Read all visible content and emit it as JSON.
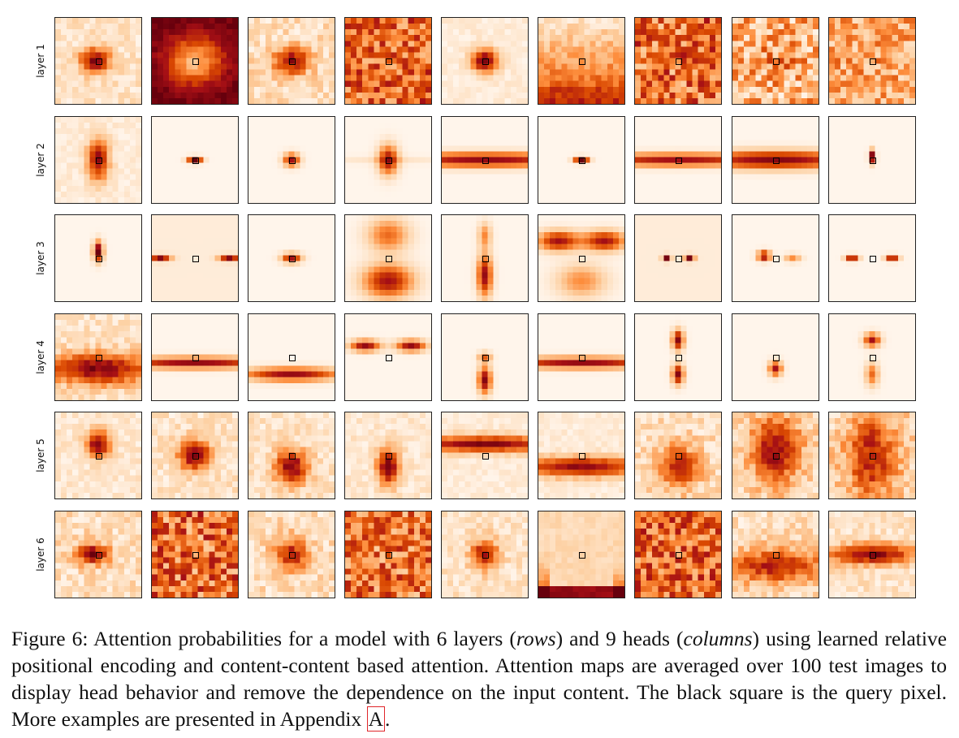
{
  "figure": {
    "row_labels": [
      "layer 1",
      "layer 2",
      "layer 3",
      "layer 4",
      "layer 5",
      "layer 6"
    ],
    "colormap": [
      "#fff5eb",
      "#fdd0a2",
      "#fd8d3c",
      "#d94801",
      "#a50f15",
      "#67000d"
    ],
    "query_marker_color": "#000000",
    "panel_count": 54,
    "heads_per_row": 9
  },
  "caption": {
    "prefix": "Figure 6:  Attention probabilities for a model with 6 layers (",
    "rows_word": "rows",
    "middle": ") and 9 heads (",
    "columns_word": "columns",
    "suffix": ") using learned relative positional encoding and content-content based attention. Attention maps are averaged over 100 test images to display head behavior and remove the dependence on the input content. The black square is the query pixel. More examples are presented in Appendix ",
    "appendix_ref": "A",
    "end": "."
  }
}
